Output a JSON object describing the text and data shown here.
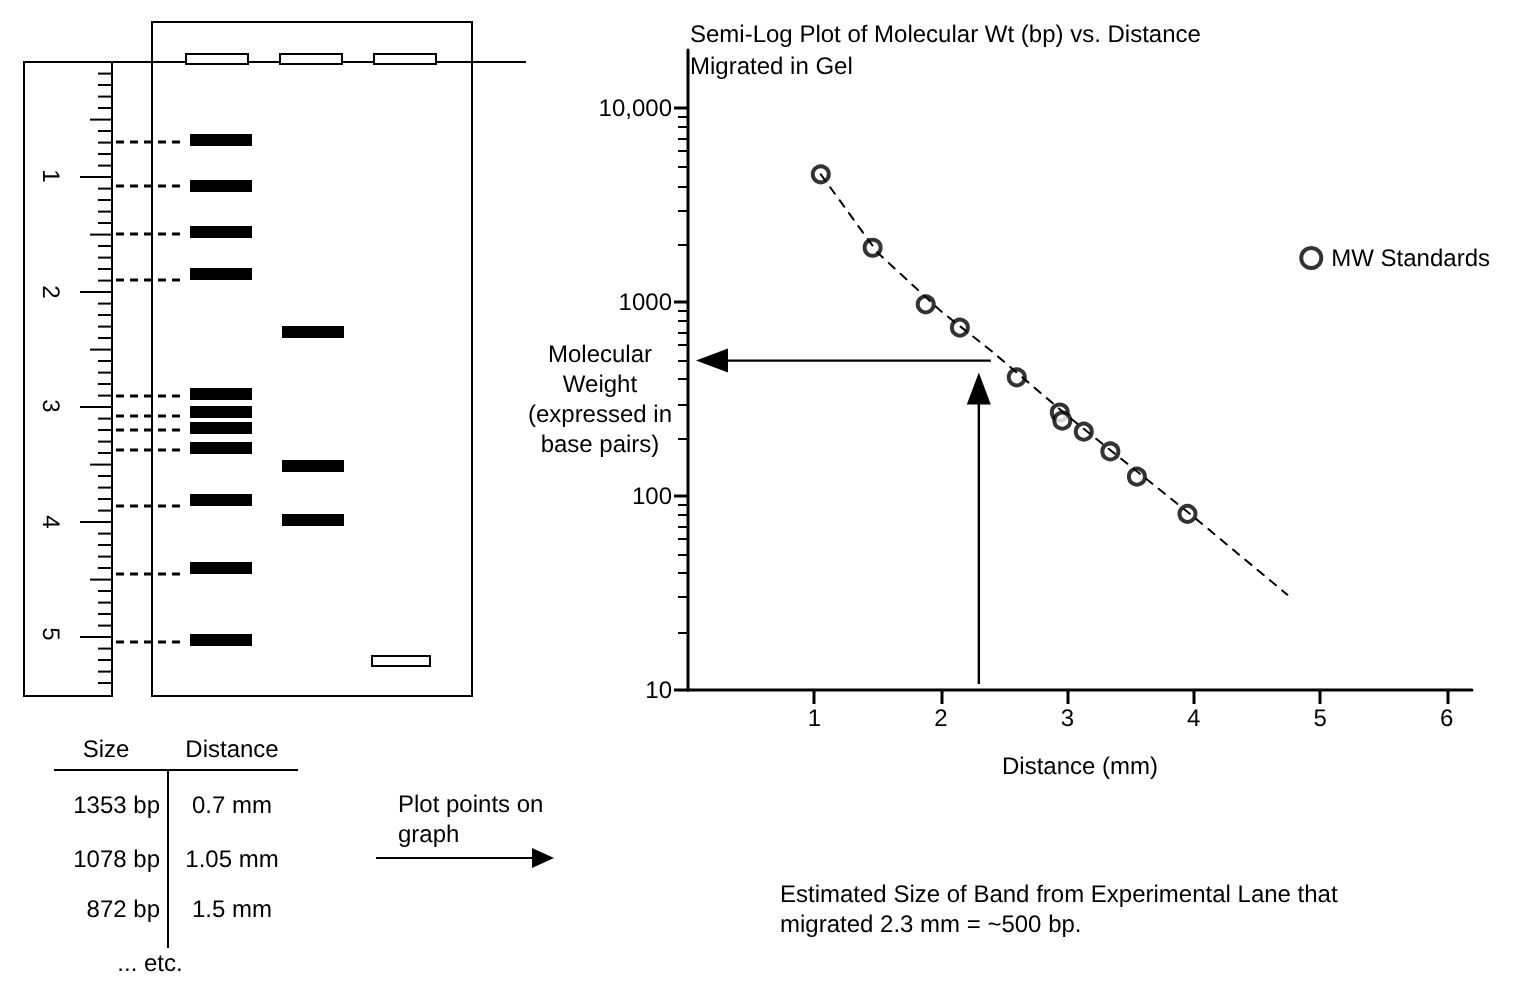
{
  "chart_data": {
    "type": "scatter",
    "title": "Semi-Log Plot of Molecular Wt (bp) vs. Distance Migrated in Gel",
    "xlabel": "Distance (mm)",
    "ylabel": "Molecular Weight (expressed in base pairs)",
    "log": "y",
    "xlim": [
      0,
      6.2
    ],
    "xticks": [
      1,
      2,
      3,
      4,
      5,
      6
    ],
    "ylim": [
      10,
      20000
    ],
    "yticks": [
      {
        "value": 10000,
        "label": "10,000"
      },
      {
        "value": 1000,
        "label": "1000"
      },
      {
        "value": 100,
        "label": "100"
      },
      {
        "value": 10,
        "label": "10"
      }
    ],
    "grid": false,
    "legend": "top right",
    "ref_lines": [
      {
        "axis": "y",
        "value": 500
      },
      {
        "axis": "x",
        "value": 2.3
      }
    ],
    "series": [
      {
        "name": "MW Standards",
        "color": "#000000",
        "marker": "circle",
        "x": [
          1.05,
          1.46,
          1.88,
          2.15,
          2.6,
          2.94,
          2.96,
          3.13,
          3.34,
          3.55,
          3.95
        ],
        "values": [
          4570,
          1910,
          975,
          740,
          410,
          270,
          245,
          215,
          170,
          126,
          81
        ]
      },
      {
        "type": "line",
        "color": "#000000",
        "marker": "none",
        "line_style": "dashed",
        "x": [
          1.05,
          1.5,
          2.0,
          2.4,
          3.0,
          4.0,
          4.74
        ],
        "values": [
          4570,
          1800,
          900,
          560,
          260,
          78,
          31
        ]
      }
    ],
    "annotations": [
      "Estimated Size of Band from Experimental Lane that migrated 2.3 mm = ~500 bp.",
      "1",
      "2",
      "3",
      "4",
      "5",
      "Size",
      "Distance",
      "1353 bp",
      "0.7 mm",
      "1078 bp",
      "1.05 mm",
      "872 bp",
      "1.5 mm",
      "Plot points on graph",
      "... etc."
    ]
  }
}
